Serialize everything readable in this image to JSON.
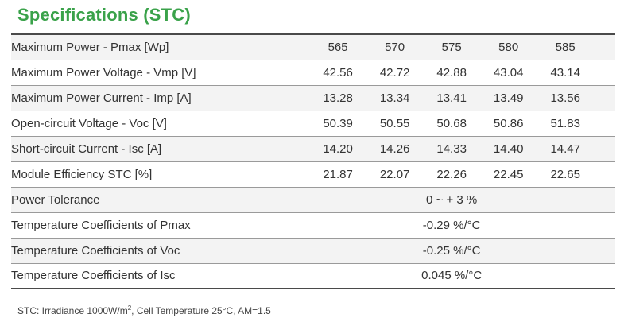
{
  "title": "Specifications (STC)",
  "rows": [
    {
      "label": "Maximum Power - Pmax  [Wp]",
      "values": [
        "565",
        "570",
        "575",
        "580",
        "585"
      ]
    },
    {
      "label": "Maximum Power Voltage - Vmp  [V]",
      "values": [
        "42.56",
        "42.72",
        "42.88",
        "43.04",
        "43.14"
      ]
    },
    {
      "label": "Maximum Power Current - Imp  [A]",
      "values": [
        "13.28",
        "13.34",
        "13.41",
        "13.49",
        "13.56"
      ]
    },
    {
      "label": "Open-circuit Voltage - Voc  [V]",
      "values": [
        "50.39",
        "50.55",
        "50.68",
        "50.86",
        "51.83"
      ]
    },
    {
      "label": "Short-circuit Current - Isc  [A]",
      "values": [
        "14.20",
        "14.26",
        "14.33",
        "14.40",
        "14.47"
      ]
    },
    {
      "label": "Module Efficiency STC  [%]",
      "values": [
        "21.87",
        "22.07",
        "22.26",
        "22.45",
        "22.65"
      ]
    }
  ],
  "span_rows": [
    {
      "label": "Power Tolerance",
      "value": "0 ~ + 3 %"
    },
    {
      "label": "Temperature Coefficients of Pmax",
      "value": "-0.29 %/°C"
    },
    {
      "label": "Temperature Coefficients of Voc",
      "value": "-0.25 %/°C"
    },
    {
      "label": "Temperature Coefficients of Isc",
      "value": "0.045 %/°C"
    }
  ],
  "note": {
    "prefix": "STC: Irradiance 1000W/m",
    "sup": "2",
    "suffix": ", Cell Temperature 25°C, AM=1.5"
  }
}
